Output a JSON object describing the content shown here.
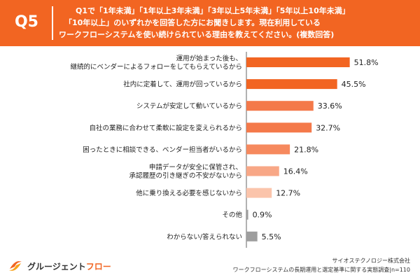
{
  "header": {
    "q_label": "Q5",
    "question_line1": "Q1で「1年未満」「1年以上3年未満」「3年以上5年未満」「5年以上10年未満」",
    "question_line2": "「10年以上」のいずれかを回答した方にお聞きします。現在利用している",
    "question_line3": "ワークフローシステムを使い続けられている理由を教えてください。(複数回答)",
    "bg_color": "#f26522"
  },
  "chart_data": {
    "type": "bar",
    "orientation": "horizontal",
    "title": "",
    "xlabel": "",
    "ylabel": "",
    "xlim": [
      0,
      100
    ],
    "grid": false,
    "unit": "%",
    "categories": [
      [
        "運用が始まった後も、",
        "継続的にベンダーによるフォローをしてもらえているから"
      ],
      [
        "社内に定着して、運用が回っているから"
      ],
      [
        "システムが安定して動いているから"
      ],
      [
        "自社の業務に合わせて柔軟に設定を変えられるから"
      ],
      [
        "困ったときに相談できる、ベンダー担当者がいるから"
      ],
      [
        "申請データが安全に保管され、",
        "承認履歴の引き継ぎの不安がないから"
      ],
      [
        "他に乗り換える必要を感じないから"
      ],
      [
        "その他"
      ],
      [
        "わからない/答えられない"
      ]
    ],
    "values": [
      51.8,
      45.5,
      33.6,
      32.7,
      21.8,
      16.4,
      12.7,
      0.9,
      5.5
    ],
    "value_labels": [
      "51.8%",
      "45.5%",
      "33.6%",
      "32.7%",
      "21.8%",
      "16.4%",
      "12.7%",
      "0.9%",
      "5.5%"
    ],
    "colors": [
      "#f26522",
      "#f26522",
      "#f4794a",
      "#f4794a",
      "#f6895e",
      "#f8a786",
      "#fbc4ab",
      "#9e9e9e",
      "#9e9e9e"
    ]
  },
  "footer": {
    "logo_text_main": "グルージェント",
    "logo_text_accent": "フロー",
    "source_line1": "サイオステクノロジー株式会社",
    "source_line2": "ワークフローシステムの長期運用と選定基準に関する実態調査|n=110"
  }
}
